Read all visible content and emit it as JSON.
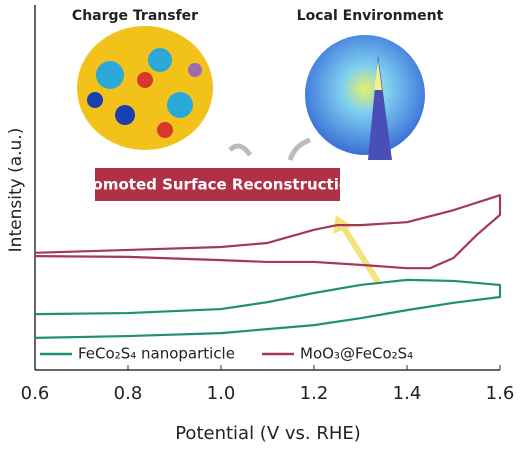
{
  "chart_data": {
    "type": "line",
    "y_label": "Intensity (a.u.)",
    "x_label": "Potential (V vs. RHE)",
    "annotations": [
      "Charge Transfer",
      "Local Environment",
      "Promoted Surface Reconstruction"
    ],
    "xlim": [
      0.6,
      1.6
    ],
    "xticks": [
      0.6,
      0.8,
      {
        "value": 1,
        "label": "1.0"
      },
      1.2,
      1.4,
      1.6
    ],
    "ylim": [
      0,
      100
    ],
    "legend": "lower center",
    "series": [
      {
        "name": "FeCo₂S₄ nanoparticle",
        "color": "#1f8f7a",
        "x": [
          0.6,
          0.8,
          1.0,
          1.2,
          1.3,
          1.4,
          1.5,
          1.6,
          1.6,
          1.5,
          1.4,
          1.3,
          1.2,
          1.1,
          1.0,
          0.8,
          0.6
        ],
        "values": [
          8.8,
          9.3,
          10.1,
          12.3,
          14.2,
          16.4,
          18.4,
          20.0,
          23.3,
          24.4,
          24.7,
          23.3,
          21.1,
          18.6,
          16.7,
          15.6,
          15.3
        ]
      },
      {
        "name": "MoO₃@FeCo₂S₄",
        "color": "#a33a52",
        "x": [
          0.6,
          0.8,
          1.0,
          1.1,
          1.2,
          1.3,
          1.4,
          1.45,
          1.5,
          1.55,
          1.6,
          1.6,
          1.5,
          1.4,
          1.3,
          1.25,
          1.2,
          1.1,
          1.0,
          0.8,
          0.6
        ],
        "values": [
          31.2,
          31.0,
          30.1,
          29.6,
          29.6,
          28.8,
          27.9,
          27.9,
          30.7,
          37.0,
          42.5,
          47.9,
          43.8,
          40.5,
          39.7,
          39.7,
          38.4,
          34.8,
          33.7,
          32.9,
          32.1
        ]
      }
    ]
  }
}
